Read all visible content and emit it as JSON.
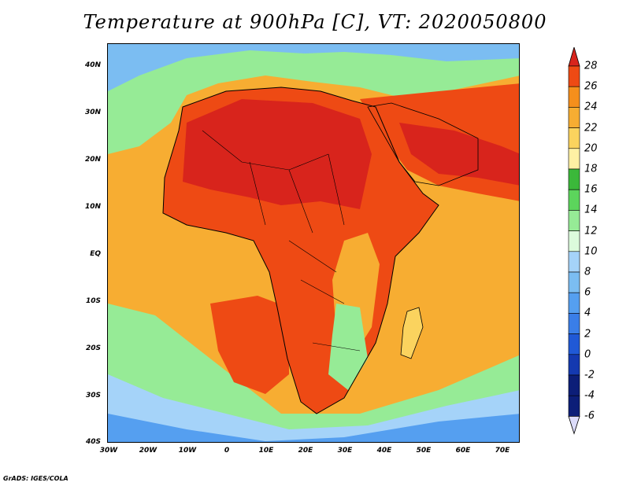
{
  "title": "Temperature at 900hPa [C], VT: 2020050800",
  "footer": "GrADS: IGES/COLA",
  "axes": {
    "lat_labels": [
      "40N",
      "30N",
      "20N",
      "10N",
      "EQ",
      "10S",
      "20S",
      "30S",
      "40S"
    ],
    "lon_labels": [
      "30W",
      "20W",
      "10W",
      "0",
      "10E",
      "20E",
      "30E",
      "40E",
      "50E",
      "60E",
      "70E"
    ]
  },
  "colorbar": {
    "labels": [
      "28",
      "26",
      "24",
      "22",
      "20",
      "18",
      "16",
      "14",
      "12",
      "10",
      "8",
      "6",
      "4",
      "2",
      "0",
      "-2",
      "-4",
      "-6"
    ],
    "colors": [
      "#d8241c",
      "#ee4a14",
      "#f58f1c",
      "#f7ad32",
      "#fbd35e",
      "#fff1a4",
      "#3bb83a",
      "#5cd55c",
      "#96eb96",
      "#dcfbdc",
      "#a5d3f9",
      "#7bbdf2",
      "#559ff0",
      "#3a7ee8",
      "#2059d6",
      "#1439b0",
      "#0c1e78",
      "#dcdcfa"
    ]
  }
}
